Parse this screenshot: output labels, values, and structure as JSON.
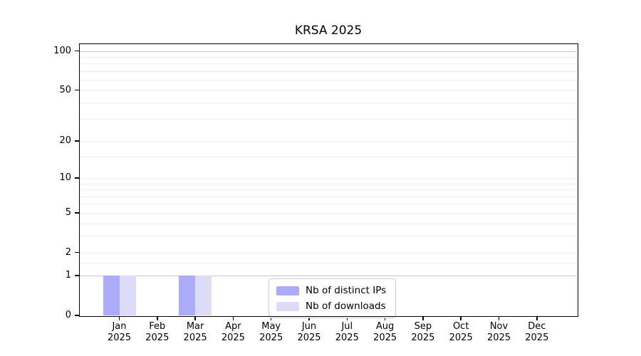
{
  "title": "KRSA 2025",
  "chart_data": {
    "type": "bar",
    "title": "KRSA 2025",
    "categories": [
      "Jan 2025",
      "Feb 2025",
      "Mar 2025",
      "Apr 2025",
      "May 2025",
      "Jun 2025",
      "Jul 2025",
      "Aug 2025",
      "Sep 2025",
      "Oct 2025",
      "Nov 2025",
      "Dec 2025"
    ],
    "months": [
      "Jan",
      "Feb",
      "Mar",
      "Apr",
      "May",
      "Jun",
      "Jul",
      "Aug",
      "Sep",
      "Oct",
      "Nov",
      "Dec"
    ],
    "year": "2025",
    "series": [
      {
        "name": "Nb of distinct IPs",
        "color": "#ababf8",
        "values": [
          1,
          0,
          1,
          0,
          0,
          0,
          0,
          0,
          0,
          0,
          0,
          0
        ]
      },
      {
        "name": "Nb of downloads",
        "color": "#dcdcf8",
        "values": [
          1,
          0,
          1,
          0,
          0,
          0,
          0,
          0,
          0,
          0,
          0,
          0
        ]
      }
    ],
    "xlabel": "",
    "ylabel": "",
    "yscale": "log1p",
    "ylim": [
      0,
      113
    ],
    "y_ticks": [
      100,
      50,
      20,
      10,
      5,
      2,
      1,
      0
    ],
    "grid": "horizontal",
    "grid_major_values": [
      1,
      100
    ],
    "grid_minor_values": [
      1.5,
      2,
      3,
      4,
      5,
      6,
      7,
      8,
      9,
      10,
      15,
      20,
      30,
      40,
      50,
      60,
      70,
      80,
      90
    ],
    "legend_position": "lower center"
  }
}
